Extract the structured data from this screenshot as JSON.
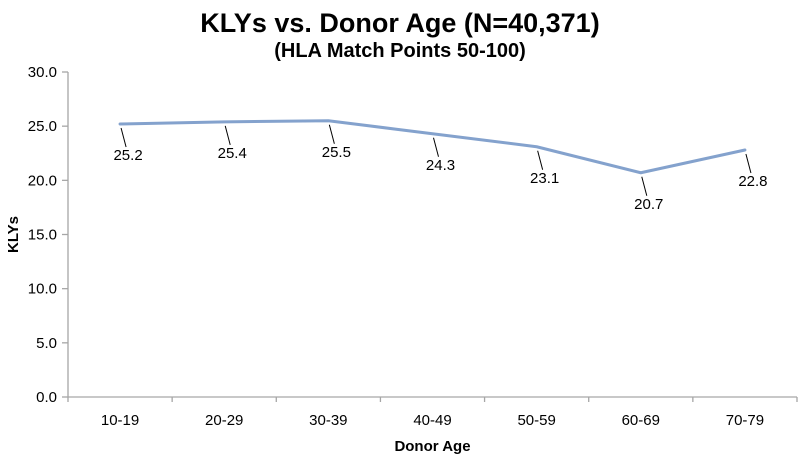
{
  "chart_data": {
    "type": "line",
    "title": "KLYs vs. Donor Age (N=40,371)",
    "subtitle": "(HLA Match Points 50-100)",
    "categories": [
      "10-19",
      "20-29",
      "30-39",
      "40-49",
      "50-59",
      "60-69",
      "70-79"
    ],
    "values": [
      25.2,
      25.4,
      25.5,
      24.3,
      23.1,
      20.7,
      22.8
    ],
    "data_labels": [
      "25.2",
      "25.4",
      "25.5",
      "24.3",
      "23.1",
      "20.7",
      "22.8"
    ],
    "xlabel": "Donor Age",
    "ylabel": "KLYs",
    "ylim": [
      0,
      30
    ],
    "ytick_step": 5,
    "ytick_labels": [
      "0.0",
      "5.0",
      "10.0",
      "15.0",
      "20.0",
      "25.0",
      "30.0"
    ],
    "grid": false,
    "legend": "none",
    "line_color": "#84A2CD",
    "axis_color": "#A6A6A6",
    "leader_color": "#000000",
    "text_color": "#000000"
  }
}
